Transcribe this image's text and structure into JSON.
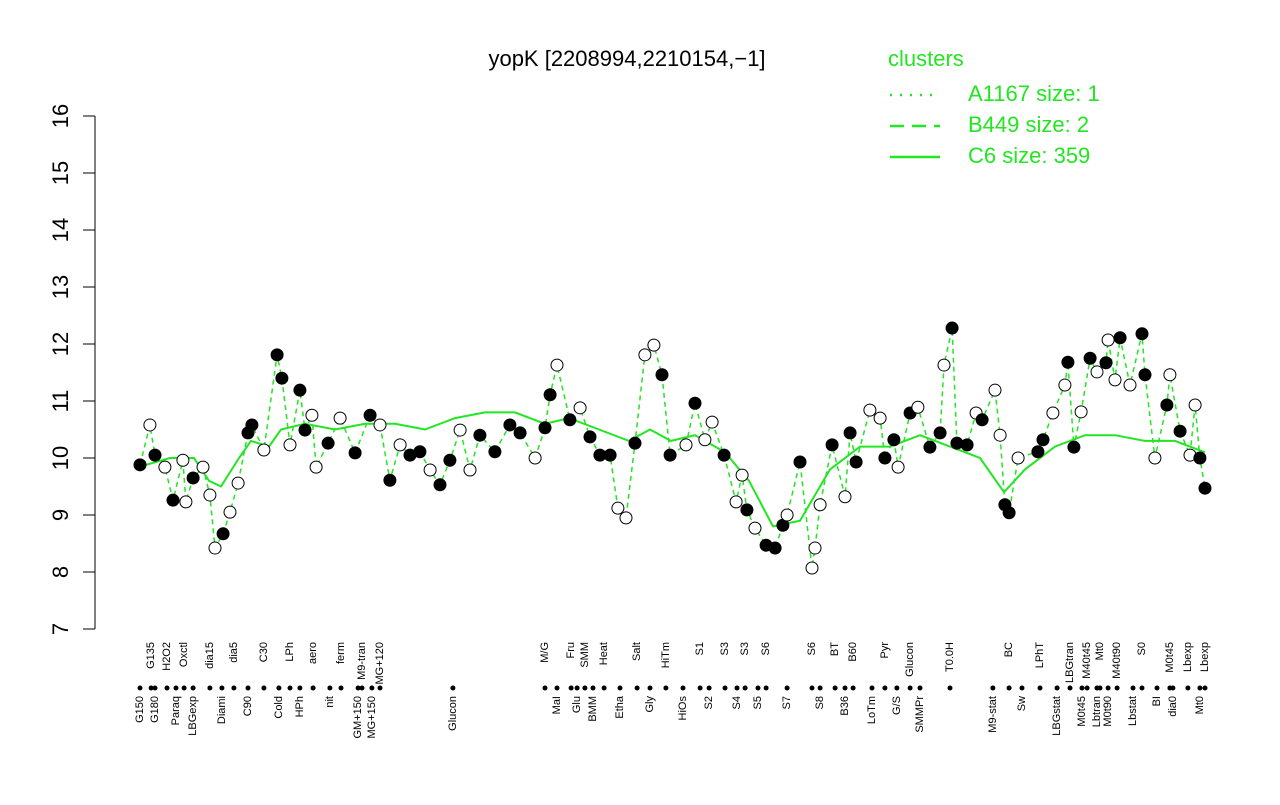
{
  "chart_data": {
    "type": "scatter",
    "title": "yopK [2208994,2210154,−1]",
    "legend_title": "clusters",
    "ylim": [
      7,
      16
    ],
    "yticks": [
      7,
      8,
      9,
      10,
      11,
      12,
      13,
      14,
      15,
      16
    ],
    "xlim": [
      0,
      374
    ],
    "xticks": [
      {
        "value": 15,
        "label": "G150"
      },
      {
        "value": 18.7,
        "label": "G135"
      },
      {
        "value": 20,
        "label": "G180"
      },
      {
        "value": 24,
        "label": "H2O2"
      },
      {
        "value": 27,
        "label": "Paraq"
      },
      {
        "value": 29.7,
        "label": "Oxctl"
      },
      {
        "value": 32.7,
        "label": "LBGexp"
      },
      {
        "value": 38.3,
        "label": "dia15"
      },
      {
        "value": 42.3,
        "label": "Diami"
      },
      {
        "value": 46.3,
        "label": "dia5"
      },
      {
        "value": 51,
        "label": "C90"
      },
      {
        "value": 56.3,
        "label": "C30"
      },
      {
        "value": 61.3,
        "label": "Cold"
      },
      {
        "value": 65,
        "label": "LPh"
      },
      {
        "value": 68.3,
        "label": "HPh"
      },
      {
        "value": 72.7,
        "label": "aero"
      },
      {
        "value": 78.3,
        "label": "nit"
      },
      {
        "value": 82,
        "label": "ferm"
      },
      {
        "value": 87.7,
        "label": "GM+150"
      },
      {
        "value": 89,
        "label": "M9-tran"
      },
      {
        "value": 92.3,
        "label": "MG+150"
      },
      {
        "value": 95,
        "label": "MG+120"
      },
      {
        "value": 119.3,
        "label": "Glucon"
      },
      {
        "value": 150,
        "label": "M/G"
      },
      {
        "value": 154,
        "label": "MaI"
      },
      {
        "value": 158.7,
        "label": "Fru"
      },
      {
        "value": 160.7,
        "label": "Glu"
      },
      {
        "value": 163.3,
        "label": "SMM"
      },
      {
        "value": 166,
        "label": "BMM"
      },
      {
        "value": 169.7,
        "label": "Heat"
      },
      {
        "value": 175,
        "label": "Etha"
      },
      {
        "value": 180.7,
        "label": "Salt"
      },
      {
        "value": 185,
        "label": "Gly"
      },
      {
        "value": 190.3,
        "label": "HiTm"
      },
      {
        "value": 196,
        "label": "HiOs"
      },
      {
        "value": 201.7,
        "label": "S1"
      },
      {
        "value": 204.7,
        "label": "S2"
      },
      {
        "value": 210,
        "label": "S3"
      },
      {
        "value": 214,
        "label": "S4"
      },
      {
        "value": 216.7,
        "label": "S3"
      },
      {
        "value": 221,
        "label": "S5"
      },
      {
        "value": 223.7,
        "label": "S6"
      },
      {
        "value": 230.7,
        "label": "S7"
      },
      {
        "value": 239,
        "label": "S6"
      },
      {
        "value": 241.7,
        "label": "S8"
      },
      {
        "value": 246.7,
        "label": "BT"
      },
      {
        "value": 250,
        "label": "B36"
      },
      {
        "value": 252.7,
        "label": "B60"
      },
      {
        "value": 259,
        "label": "LoTm"
      },
      {
        "value": 263.3,
        "label": "Pyr"
      },
      {
        "value": 267.3,
        "label": "G/S"
      },
      {
        "value": 271.7,
        "label": "Glucon"
      },
      {
        "value": 275,
        "label": "SMMPr"
      },
      {
        "value": 285,
        "label": "T0.0H"
      },
      {
        "value": 299.3,
        "label": "M9-stat"
      },
      {
        "value": 304.7,
        "label": "BC"
      },
      {
        "value": 309,
        "label": "Sw"
      },
      {
        "value": 315,
        "label": "LPhT"
      },
      {
        "value": 320.7,
        "label": "LBGstat"
      },
      {
        "value": 325,
        "label": "LBGtran"
      },
      {
        "value": 329,
        "label": "M0t45"
      },
      {
        "value": 330.7,
        "label": "M40t45"
      },
      {
        "value": 334,
        "label": "Lbtran"
      },
      {
        "value": 335,
        "label": "Mt0"
      },
      {
        "value": 337.7,
        "label": "M0t90"
      },
      {
        "value": 340.7,
        "label": "M40t90"
      },
      {
        "value": 346,
        "label": "Lbstat"
      },
      {
        "value": 349,
        "label": "S0"
      },
      {
        "value": 354,
        "label": "BI"
      },
      {
        "value": 358.3,
        "label": "M0t45"
      },
      {
        "value": 359.3,
        "label": "dia0"
      },
      {
        "value": 364.3,
        "label": "Lbexp"
      },
      {
        "value": 368.3,
        "label": "Mt0"
      },
      {
        "value": 370,
        "label": "Lbexp"
      }
    ],
    "points": {
      "x": [
        15,
        18.3,
        20,
        23.3,
        26,
        29.3,
        30.3,
        32.7,
        36,
        38.3,
        40,
        42.7,
        45,
        47.7,
        51,
        52.3,
        56.3,
        60.7,
        62.3,
        65,
        68.3,
        70,
        72.3,
        73.7,
        77.7,
        81.7,
        86.7,
        91.7,
        95,
        98.3,
        101.7,
        105,
        108.3,
        111.7,
        115,
        118.3,
        121.7,
        125,
        128.3,
        133.3,
        138.3,
        141.7,
        146.7,
        150,
        151.7,
        154,
        158.3,
        161.7,
        165,
        168.3,
        171.7,
        174.3,
        177,
        180,
        183.3,
        186.3,
        189,
        191.7,
        197,
        200,
        203.3,
        205.7,
        209.7,
        213.7,
        215.7,
        217.3,
        220,
        223.7,
        226.7,
        229.3,
        230.7,
        235,
        239,
        240,
        241.7,
        245.7,
        250,
        251.7,
        253.7,
        258.3,
        261.7,
        263.3,
        266.3,
        267.7,
        271.7,
        274.3,
        278.3,
        281.7,
        283,
        285.7,
        287.3,
        290.7,
        293.7,
        295.7,
        300,
        301.7,
        303.3,
        304.7,
        307.7,
        314.3,
        316,
        319.3,
        323.3,
        324.3,
        326.3,
        328.7,
        331.7,
        334,
        337,
        337.7,
        340,
        341.7,
        345,
        349,
        350,
        353.3,
        357.3,
        358.3,
        361.7,
        365,
        366.7,
        368.3,
        370
      ],
      "values": [
        9.88,
        10.58,
        10.05,
        9.84,
        9.26,
        9.96,
        9.23,
        9.65,
        9.84,
        9.35,
        8.42,
        8.67,
        9.05,
        9.56,
        10.44,
        10.58,
        10.14,
        11.81,
        11.4,
        10.23,
        11.19,
        10.49,
        10.75,
        9.84,
        10.26,
        10.7,
        10.09,
        10.75,
        10.58,
        9.61,
        10.23,
        10.05,
        10.11,
        9.79,
        9.53,
        9.96,
        10.49,
        9.79,
        10.4,
        10.11,
        10.58,
        10.44,
        10.0,
        10.53,
        11.11,
        11.63,
        10.67,
        10.88,
        10.37,
        10.05,
        10.05,
        9.12,
        8.95,
        10.26,
        11.81,
        11.98,
        11.46,
        10.05,
        10.23,
        10.96,
        10.32,
        10.63,
        10.05,
        9.23,
        9.7,
        9.09,
        8.77,
        8.47,
        8.42,
        8.82,
        9.0,
        9.93,
        8.07,
        8.42,
        9.18,
        10.23,
        9.32,
        10.44,
        9.93,
        10.84,
        10.7,
        10.0,
        10.32,
        9.84,
        10.79,
        10.89,
        10.19,
        10.44,
        11.63,
        12.28,
        10.26,
        10.23,
        10.79,
        10.67,
        11.19,
        10.4,
        9.18,
        9.04,
        10.0,
        10.11,
        10.32,
        10.79,
        11.28,
        11.68,
        10.19,
        10.81,
        11.75,
        11.51,
        11.67,
        12.07,
        11.37,
        12.11,
        11.28,
        12.18,
        11.46,
        10.0,
        10.93,
        11.46,
        10.47,
        10.05,
        10.93,
        10.0,
        9.47
      ],
      "filled": [
        true,
        false,
        true,
        false,
        true,
        false,
        false,
        true,
        false,
        false,
        false,
        true,
        false,
        false,
        true,
        true,
        false,
        true,
        true,
        false,
        true,
        true,
        false,
        false,
        true,
        false,
        true,
        true,
        false,
        true,
        false,
        true,
        true,
        false,
        true,
        true,
        false,
        false,
        true,
        true,
        true,
        true,
        false,
        true,
        true,
        false,
        true,
        false,
        true,
        true,
        true,
        false,
        false,
        true,
        false,
        false,
        true,
        true,
        false,
        true,
        false,
        false,
        true,
        false,
        false,
        true,
        false,
        true,
        true,
        true,
        false,
        true,
        false,
        false,
        false,
        true,
        false,
        true,
        true,
        false,
        false,
        true,
        true,
        false,
        true,
        false,
        true,
        true,
        false,
        true,
        true,
        true,
        false,
        true,
        false,
        false,
        true,
        true,
        false,
        true,
        true,
        false,
        false,
        true,
        true,
        false,
        true,
        false,
        true,
        false,
        false,
        true,
        false,
        true,
        true,
        false,
        true,
        false,
        true,
        false,
        false,
        true,
        true
      ]
    },
    "series": [
      {
        "name": "A1167 size: 1",
        "color": "#22e622",
        "dash": "dotted"
      },
      {
        "name": "B449 size: 2",
        "color": "#22e622",
        "dash": "dashed"
      },
      {
        "name": "C6 size: 359",
        "color": "#22e622",
        "dash": "solid",
        "x": [
          15,
          25,
          33,
          38,
          42,
          48,
          52,
          58,
          62,
          70,
          80,
          90,
          100,
          110,
          120,
          130,
          140,
          150,
          158,
          168,
          178,
          185,
          192,
          200,
          210,
          218,
          226,
          235,
          245,
          255,
          265,
          275,
          285,
          295,
          303,
          310,
          320,
          330,
          340,
          350,
          360,
          370
        ],
        "values": [
          9.85,
          10.0,
          10.0,
          9.6,
          9.5,
          10.0,
          10.3,
          10.2,
          10.5,
          10.6,
          10.5,
          10.6,
          10.6,
          10.5,
          10.7,
          10.8,
          10.8,
          10.6,
          10.7,
          10.5,
          10.3,
          10.5,
          10.3,
          10.4,
          10.1,
          9.6,
          8.8,
          8.9,
          9.8,
          10.2,
          10.2,
          10.4,
          10.2,
          10.0,
          9.4,
          9.8,
          10.2,
          10.4,
          10.4,
          10.3,
          10.3,
          10.1
        ]
      }
    ]
  }
}
